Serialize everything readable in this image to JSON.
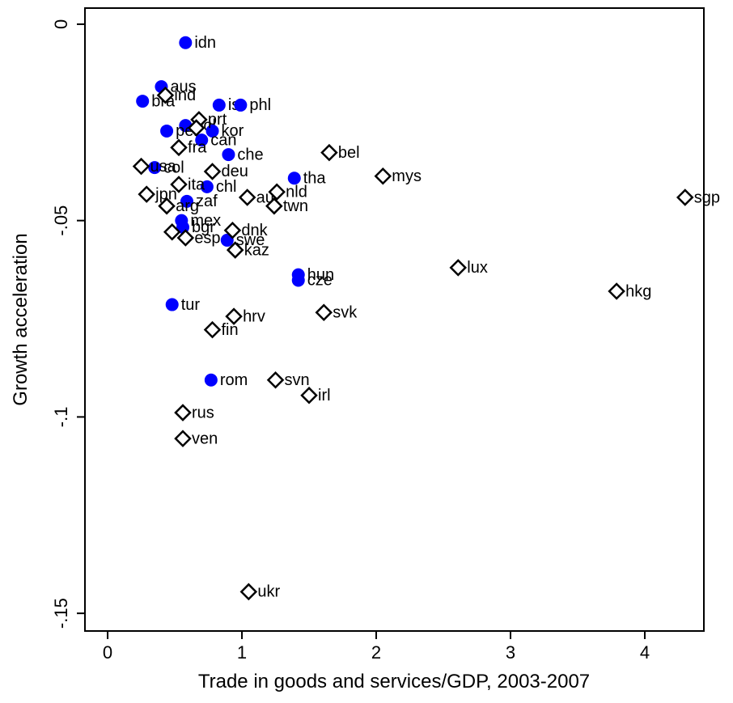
{
  "chart_data": {
    "type": "scatter",
    "xlabel": "Trade in goods and services/GDP, 2003-2007",
    "ylabel": "Growth acceleration",
    "xlim": [
      -0.169,
      4.44
    ],
    "ylim": [
      -0.1545,
      0.0041
    ],
    "xticks": [
      0,
      1,
      2,
      3,
      4
    ],
    "yticks": [
      0,
      {
        "value": -0.05,
        "label": "-.05"
      },
      {
        "value": -0.1,
        "label": "-.1"
      },
      {
        "value": -0.15,
        "label": "-.15"
      }
    ],
    "series": [
      {
        "color": "#0000ff",
        "marker": "circle",
        "x": [
          0.58,
          0.4,
          0.26,
          0.83,
          0.99,
          0.58,
          0.44,
          0.78,
          0.7,
          0.9,
          0.35,
          1.39,
          0.74,
          0.59,
          0.55,
          0.56,
          0.89,
          1.42,
          1.42,
          0.48,
          0.77
        ],
        "values": [
          -0.0047,
          -0.0159,
          -0.0196,
          -0.0206,
          -0.0206,
          -0.0258,
          -0.0272,
          -0.0272,
          -0.0295,
          -0.0332,
          -0.0365,
          -0.0392,
          -0.0414,
          -0.0451,
          -0.05,
          -0.0517,
          -0.055,
          -0.0638,
          -0.0652,
          -0.0714,
          -0.0906
        ],
        "labels": [
          "idn",
          "aus",
          "bra",
          "isr",
          "phl",
          "pol",
          "per",
          "kor",
          "can",
          "che",
          "col",
          "tha",
          "chl",
          "zaf",
          "mex",
          "bgr",
          "swe",
          "hun",
          "cze",
          "tur",
          "rom"
        ]
      },
      {
        "color": "#000000",
        "marker": "diamond",
        "x": [
          0.43,
          0.68,
          0.66,
          0.53,
          1.65,
          0.25,
          0.78,
          2.05,
          0.53,
          4.3,
          1.04,
          1.26,
          1.24,
          0.29,
          0.44,
          0.48,
          0.93,
          0.58,
          0.95,
          2.61,
          3.79,
          1.61,
          0.94,
          0.78,
          1.25,
          1.5,
          0.56,
          0.56,
          1.05
        ],
        "values": [
          -0.0181,
          -0.0243,
          -0.0264,
          -0.0314,
          -0.0327,
          -0.0362,
          -0.0375,
          -0.0387,
          -0.0408,
          -0.0441,
          -0.0441,
          -0.0427,
          -0.0463,
          -0.0433,
          -0.0463,
          -0.0529,
          -0.0525,
          -0.0544,
          -0.0575,
          -0.062,
          -0.068,
          -0.0734,
          -0.0744,
          -0.0778,
          -0.0906,
          -0.0945,
          -0.0989,
          -0.1055,
          -0.1445
        ],
        "labels": [
          "ind",
          "prt",
          null,
          "fra",
          "bel",
          "usa",
          "deu",
          "mys",
          "ita",
          "sgp",
          "aut",
          "nld",
          "twn",
          "jpn",
          "arg",
          null,
          "dnk",
          "esp",
          "kaz",
          "lux",
          "hkg",
          "svk",
          "hrv",
          "fin",
          "svn",
          "irl",
          "rus",
          "ven",
          "ukr"
        ]
      }
    ]
  }
}
